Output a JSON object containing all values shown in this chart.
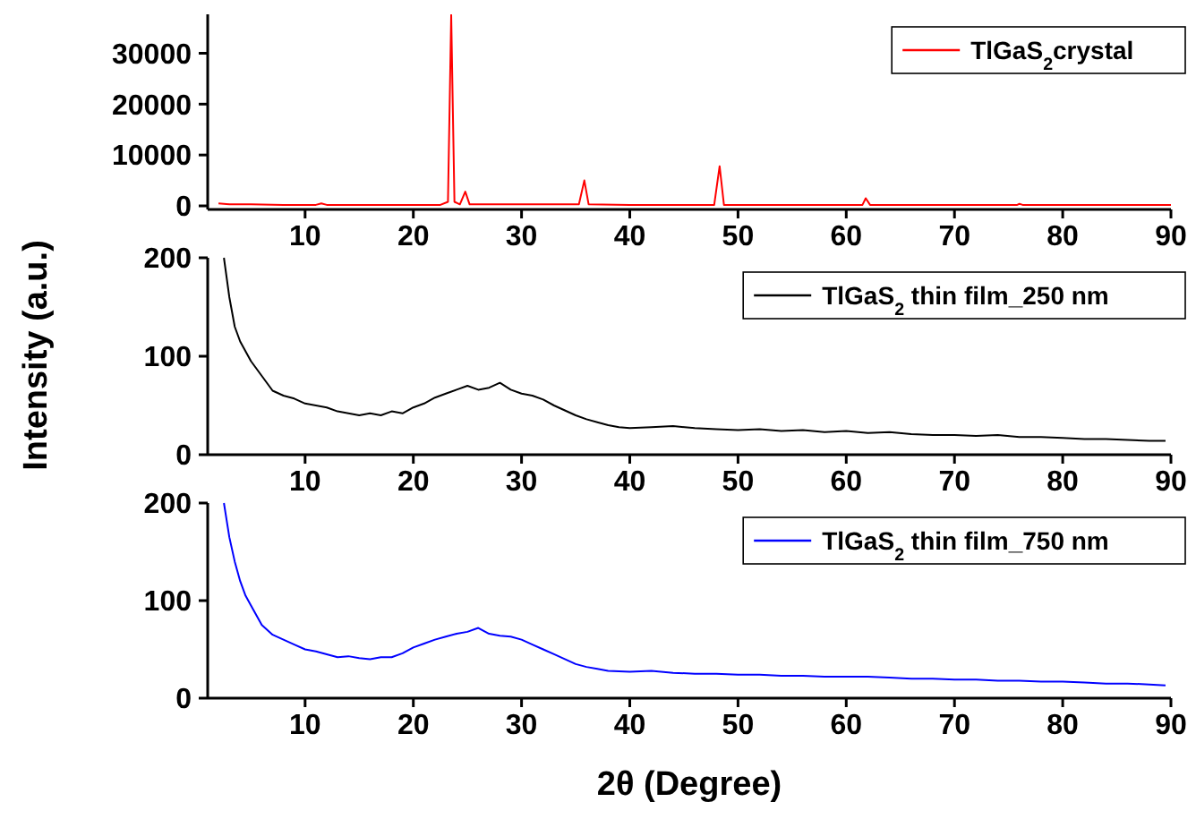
{
  "chart_data": [
    {
      "type": "line",
      "xlim": [
        1,
        90
      ],
      "xticks": [
        10,
        20,
        30,
        40,
        50,
        60,
        70,
        80,
        90
      ],
      "ylim": [
        -700,
        38000
      ],
      "yticks": [
        0,
        10000,
        20000,
        30000
      ],
      "legend": "top right",
      "series": [
        {
          "name": "TlGaS$_{2}$crystal",
          "color": "#ff0000",
          "x": [
            2,
            3,
            5,
            8,
            11,
            11.5,
            12,
            15,
            20,
            22.5,
            23.2,
            23.5,
            23.8,
            24.3,
            24.8,
            25.2,
            30,
            35.3,
            35.8,
            36.2,
            40,
            47.8,
            48.3,
            48.7,
            55,
            61.5,
            61.8,
            62.2,
            70,
            75.8,
            76,
            76.3,
            85,
            90
          ],
          "values": [
            500,
            300,
            300,
            200,
            200,
            500,
            200,
            200,
            200,
            200,
            800,
            37500,
            800,
            300,
            2800,
            300,
            300,
            300,
            5000,
            300,
            200,
            200,
            7800,
            200,
            200,
            200,
            1500,
            200,
            200,
            200,
            400,
            200,
            200,
            200
          ]
        }
      ]
    },
    {
      "type": "line",
      "xlim": [
        1,
        90
      ],
      "xticks": [
        10,
        20,
        30,
        40,
        50,
        60,
        70,
        80,
        90
      ],
      "ylim": [
        0,
        200
      ],
      "yticks": [
        0,
        100,
        200
      ],
      "legend": "top right",
      "ylabel": "Intensity (a.u.)",
      "series": [
        {
          "name": "TlGaS$_{2}$ thin film_250 nm",
          "color": "#000000",
          "x": [
            2.5,
            3,
            3.5,
            4,
            5,
            6,
            7,
            8,
            9,
            10,
            11,
            12,
            13,
            14,
            15,
            16,
            17,
            18,
            19,
            20,
            21,
            22,
            23,
            24,
            25,
            26,
            27,
            28,
            29,
            30,
            31,
            32,
            33,
            34,
            35,
            36,
            37,
            38,
            39,
            40,
            42,
            44,
            46,
            48,
            50,
            52,
            54,
            56,
            58,
            60,
            62,
            64,
            66,
            68,
            70,
            72,
            74,
            76,
            78,
            80,
            82,
            84,
            86,
            88,
            89.5
          ],
          "values": [
            200,
            160,
            130,
            115,
            95,
            80,
            65,
            60,
            57,
            52,
            50,
            48,
            44,
            42,
            40,
            42,
            40,
            44,
            42,
            48,
            52,
            58,
            62,
            66,
            70,
            66,
            68,
            73,
            66,
            62,
            60,
            56,
            50,
            45,
            40,
            36,
            33,
            30,
            28,
            27,
            28,
            29,
            27,
            26,
            25,
            26,
            24,
            25,
            23,
            24,
            22,
            23,
            21,
            20,
            20,
            19,
            20,
            18,
            18,
            17,
            16,
            16,
            15,
            14,
            14
          ]
        }
      ]
    },
    {
      "type": "line",
      "xlim": [
        1,
        90
      ],
      "xticks": [
        10,
        20,
        30,
        40,
        50,
        60,
        70,
        80,
        90
      ],
      "ylim": [
        0,
        200
      ],
      "yticks": [
        0,
        100,
        200
      ],
      "legend": "top right",
      "xlabel": "2θ (Degree)",
      "series": [
        {
          "name": "TlGaS$_{2}$ thin film_750 nm",
          "color": "#0000ff",
          "x": [
            2.5,
            3,
            3.5,
            4,
            4.5,
            5,
            6,
            7,
            8,
            9,
            10,
            11,
            12,
            13,
            14,
            15,
            16,
            17,
            18,
            19,
            20,
            21,
            22,
            23,
            24,
            25,
            26,
            27,
            28,
            29,
            30,
            31,
            32,
            33,
            34,
            35,
            36,
            37,
            38,
            40,
            42,
            44,
            46,
            48,
            50,
            52,
            54,
            56,
            58,
            60,
            62,
            64,
            66,
            68,
            70,
            72,
            74,
            76,
            78,
            80,
            82,
            84,
            86,
            88,
            89.5
          ],
          "values": [
            200,
            165,
            140,
            120,
            105,
            95,
            75,
            65,
            60,
            55,
            50,
            48,
            45,
            42,
            43,
            41,
            40,
            42,
            42,
            46,
            52,
            56,
            60,
            63,
            66,
            68,
            72,
            66,
            64,
            63,
            60,
            55,
            50,
            45,
            40,
            35,
            32,
            30,
            28,
            27,
            28,
            26,
            25,
            25,
            24,
            24,
            23,
            23,
            22,
            22,
            22,
            21,
            20,
            20,
            19,
            19,
            18,
            18,
            17,
            17,
            16,
            15,
            15,
            14,
            13
          ]
        }
      ]
    }
  ]
}
